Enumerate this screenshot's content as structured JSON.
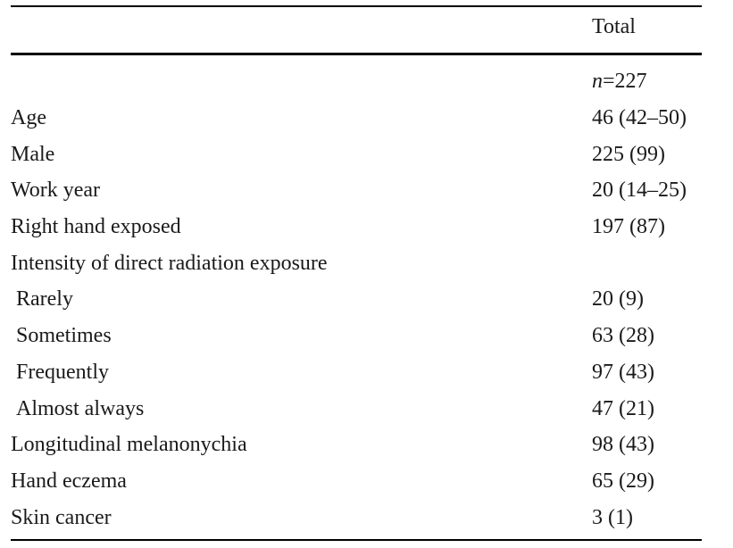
{
  "table": {
    "header": {
      "col_label": "",
      "col_total": "Total"
    },
    "n_row": {
      "var": "n",
      "eq": "=",
      "value": "227"
    },
    "rows": [
      {
        "label": "Age",
        "value": "46 (42–50)",
        "indent": false
      },
      {
        "label": "Male",
        "value": "225 (99)",
        "indent": false
      },
      {
        "label": "Work year",
        "value": "20 (14–25)",
        "indent": false
      },
      {
        "label": "Right hand exposed",
        "value": "197 (87)",
        "indent": false
      },
      {
        "label": "Intensity of direct radiation exposure",
        "value": "",
        "indent": false
      },
      {
        "label": "Rarely",
        "value": "20 (9)",
        "indent": true
      },
      {
        "label": "Sometimes",
        "value": "63 (28)",
        "indent": true
      },
      {
        "label": "Frequently",
        "value": "97 (43)",
        "indent": true
      },
      {
        "label": "Almost always",
        "value": "47 (21)",
        "indent": true
      },
      {
        "label": "Longitudinal melanonychia",
        "value": "98 (43)",
        "indent": false
      },
      {
        "label": "Hand eczema",
        "value": "65 (29)",
        "indent": false
      },
      {
        "label": "Skin cancer",
        "value": "3 (1)",
        "indent": false
      }
    ]
  }
}
